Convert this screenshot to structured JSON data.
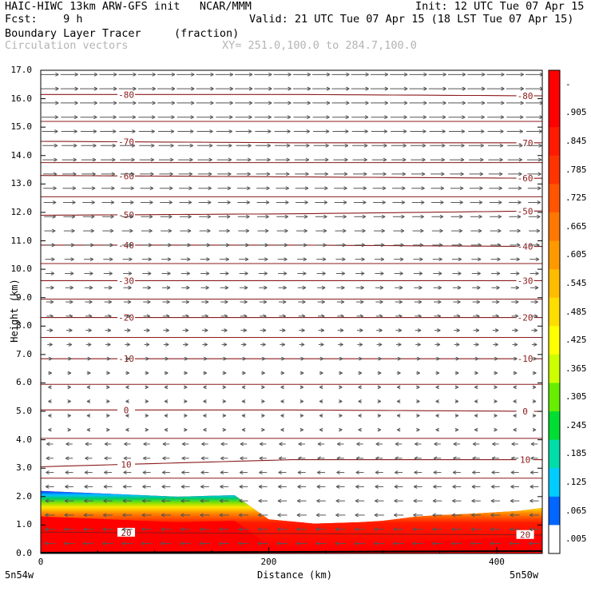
{
  "header": {
    "title_left": "HAIC-HIWC 13km ARW-GFS init   NCAR/MMM",
    "title_right": "Init: 12 UTC Tue 07 Apr 15",
    "fcst": "Fcst:    9 h",
    "valid": "Valid: 21 UTC Tue 07 Apr 15 (18 LST Tue 07 Apr 15)",
    "field": "Boundary Layer Tracer",
    "field_units": "(fraction)",
    "vectors": "Circulation vectors",
    "xy_range": "XY= 251.0,100.0 to 284.7,100.0"
  },
  "axes": {
    "ylabel": "Height (km)",
    "xlabel": "Distance (km)",
    "yticks": [
      "0.0",
      "1.0",
      "2.0",
      "3.0",
      "4.0",
      "5.0",
      "6.0",
      "7.0",
      "8.0",
      "9.0",
      "10.0",
      "11.0",
      "12.0",
      "13.0",
      "14.0",
      "15.0",
      "16.0",
      "17.0"
    ],
    "xticks": [
      "0",
      "200",
      "400"
    ],
    "x_left_label": "5n54w",
    "x_right_label": "5n50w"
  },
  "colorbar": {
    "labels": [
      "-",
      ".905",
      ".845",
      ".785",
      ".725",
      ".665",
      ".605",
      ".545",
      ".485",
      ".425",
      ".365",
      ".305",
      ".245",
      ".185",
      ".125",
      ".065",
      ".005"
    ]
  },
  "chart_data": {
    "type": "heatmap",
    "title": "Boundary Layer Tracer (fraction)",
    "xlabel": "Distance (km)",
    "ylabel": "Height (km)",
    "xlim": [
      0,
      440
    ],
    "ylim": [
      0,
      17
    ],
    "tracer_top_km": {
      "x": [
        0,
        60,
        120,
        170,
        200,
        240,
        280,
        300,
        330,
        350,
        380,
        400,
        420,
        440
      ],
      "top": [
        2.2,
        2.1,
        2.0,
        2.05,
        1.2,
        1.05,
        1.1,
        1.15,
        1.3,
        1.35,
        1.4,
        1.45,
        1.5,
        1.6
      ]
    },
    "temperature_contours_C": [
      {
        "value": 20,
        "label": "20",
        "heights": [
          0.75,
          0.7,
          0.65
        ]
      },
      {
        "value": 10,
        "label": "10",
        "heights": [
          3.05,
          3.3,
          3.3
        ]
      },
      {
        "value": 0,
        "label": "0",
        "heights": [
          5.05,
          5.05,
          5.0
        ]
      },
      {
        "value": -10,
        "label": "-10",
        "heights": [
          6.85,
          6.85,
          6.85
        ]
      },
      {
        "value": -20,
        "label": "-20",
        "heights": [
          8.3,
          8.3,
          8.3
        ]
      },
      {
        "value": -30,
        "label": "-30",
        "heights": [
          9.6,
          9.6,
          9.6
        ]
      },
      {
        "value": -40,
        "label": "-40",
        "heights": [
          10.85,
          10.85,
          10.8
        ]
      },
      {
        "value": -50,
        "label": "-50",
        "heights": [
          11.9,
          11.95,
          12.05
        ]
      },
      {
        "value": -60,
        "label": "-60",
        "heights": [
          13.3,
          13.25,
          13.2
        ]
      },
      {
        "value": -70,
        "label": "-70",
        "heights": [
          14.5,
          14.45,
          14.45
        ]
      },
      {
        "value": -80,
        "label": "-80",
        "heights": [
          16.15,
          16.15,
          16.1
        ]
      }
    ],
    "vectors": {
      "upper_direction": "east",
      "lower_direction": "west",
      "reversal_height_km": 6.0
    }
  }
}
